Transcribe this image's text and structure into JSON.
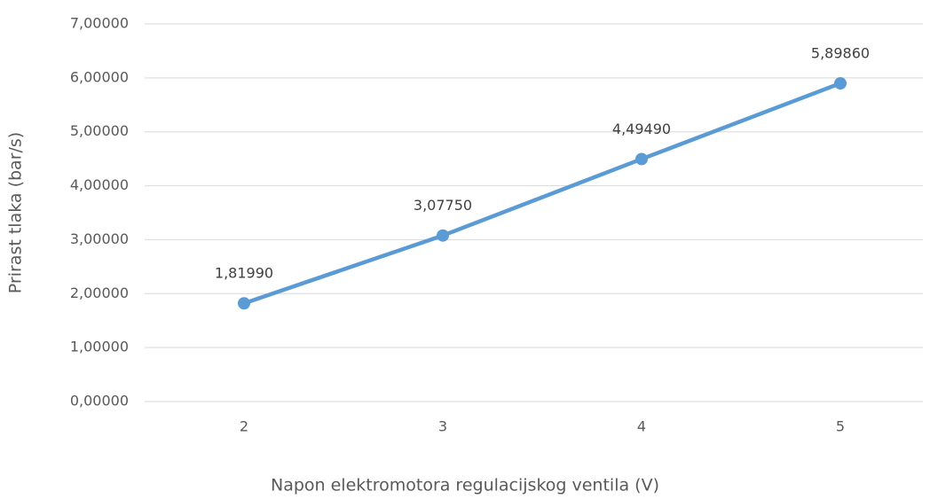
{
  "chart_data": {
    "type": "line",
    "xlabel": "Napon elektromotora regulacijskog ventila (V)",
    "ylabel": "Prirast tlaka (bar/s)",
    "categories": [
      "2",
      "3",
      "4",
      "5"
    ],
    "values": [
      1.8199,
      3.0775,
      4.4949,
      5.8986
    ],
    "value_labels": [
      "1,81990",
      "3,07750",
      "4,49490",
      "5,89860"
    ],
    "color": "#5b9bd5",
    "ylim": [
      0,
      7
    ],
    "yticks": [
      {
        "value": 0,
        "label": "0,00000"
      },
      {
        "value": 1,
        "label": "1,00000"
      },
      {
        "value": 2,
        "label": "2,00000"
      },
      {
        "value": 3,
        "label": "3,00000"
      },
      {
        "value": 4,
        "label": "4,00000"
      },
      {
        "value": 5,
        "label": "5,00000"
      },
      {
        "value": 6,
        "label": "6,00000"
      },
      {
        "value": 7,
        "label": "7,00000"
      }
    ],
    "grid": true
  }
}
